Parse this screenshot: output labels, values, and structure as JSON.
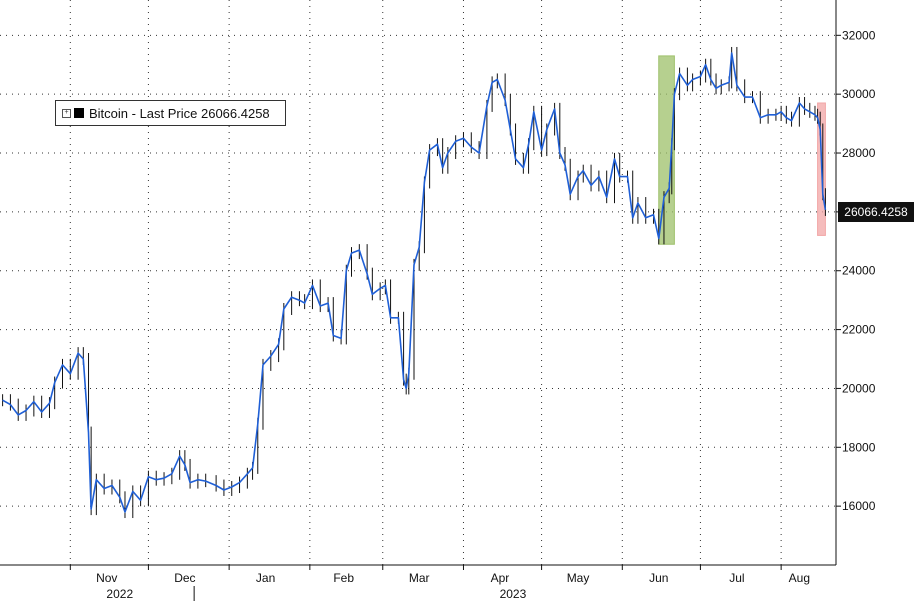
{
  "chart_data": {
    "type": "line",
    "series": [
      {
        "name": "Bitcoin - Last Price",
        "color": "#1f5fd6"
      }
    ],
    "legend": {
      "label": "Bitcoin - Last Price 26066.4258",
      "placement": "top-left"
    },
    "last_value_label": "26066.4258",
    "y_ticks": [
      "16000",
      "18000",
      "20000",
      "22000",
      "24000",
      "26000",
      "28000",
      "30000",
      "32000"
    ],
    "ylim": [
      14000,
      33200
    ],
    "x_month_labels": [
      "Nov",
      "Dec",
      "Jan",
      "Feb",
      "Mar",
      "Apr",
      "May",
      "Jun",
      "Jul",
      "Aug"
    ],
    "x_year_labels": [
      "2022",
      "2023"
    ],
    "grid": true,
    "highlights": [
      {
        "kind": "rally",
        "color": "#9ec06a",
        "from": "2023-06-15",
        "to": "2023-06-21",
        "y_range": [
          24900,
          31300
        ]
      },
      {
        "kind": "drop",
        "color": "#f2a6a6",
        "from": "2023-08-15",
        "to": "2023-08-18",
        "y_range": [
          25200,
          29700
        ]
      }
    ],
    "points": [
      [
        "2022-10-06",
        19600
      ],
      [
        "2022-10-09",
        19450
      ],
      [
        "2022-10-12",
        19100
      ],
      [
        "2022-10-15",
        19250
      ],
      [
        "2022-10-18",
        19550
      ],
      [
        "2022-10-21",
        19200
      ],
      [
        "2022-10-24",
        19500
      ],
      [
        "2022-10-26",
        20200
      ],
      [
        "2022-10-29",
        20800
      ],
      [
        "2022-11-01",
        20500
      ],
      [
        "2022-11-04",
        21200
      ],
      [
        "2022-11-06",
        21000
      ],
      [
        "2022-11-08",
        18500
      ],
      [
        "2022-11-09",
        15900
      ],
      [
        "2022-11-11",
        16900
      ],
      [
        "2022-11-14",
        16600
      ],
      [
        "2022-11-17",
        16700
      ],
      [
        "2022-11-20",
        16300
      ],
      [
        "2022-11-22",
        15800
      ],
      [
        "2022-11-25",
        16500
      ],
      [
        "2022-11-28",
        16200
      ],
      [
        "2022-12-01",
        17000
      ],
      [
        "2022-12-04",
        16900
      ],
      [
        "2022-12-07",
        16950
      ],
      [
        "2022-12-10",
        17100
      ],
      [
        "2022-12-13",
        17700
      ],
      [
        "2022-12-15",
        17400
      ],
      [
        "2022-12-17",
        16800
      ],
      [
        "2022-12-20",
        16900
      ],
      [
        "2022-12-23",
        16850
      ],
      [
        "2022-12-27",
        16700
      ],
      [
        "2022-12-30",
        16550
      ],
      [
        "2023-01-02",
        16650
      ],
      [
        "2023-01-05",
        16800
      ],
      [
        "2023-01-08",
        17100
      ],
      [
        "2023-01-10",
        17300
      ],
      [
        "2023-01-12",
        18800
      ],
      [
        "2023-01-14",
        20800
      ],
      [
        "2023-01-17",
        21100
      ],
      [
        "2023-01-20",
        21500
      ],
      [
        "2023-01-22",
        22700
      ],
      [
        "2023-01-25",
        23100
      ],
      [
        "2023-01-28",
        23000
      ],
      [
        "2023-01-30",
        22900
      ],
      [
        "2023-02-02",
        23500
      ],
      [
        "2023-02-05",
        22800
      ],
      [
        "2023-02-08",
        22900
      ],
      [
        "2023-02-10",
        21800
      ],
      [
        "2023-02-13",
        21700
      ],
      [
        "2023-02-15",
        24000
      ],
      [
        "2023-02-17",
        24600
      ],
      [
        "2023-02-20",
        24700
      ],
      [
        "2023-02-23",
        23900
      ],
      [
        "2023-02-25",
        23200
      ],
      [
        "2023-02-28",
        23400
      ],
      [
        "2023-03-02",
        23500
      ],
      [
        "2023-03-04",
        22400
      ],
      [
        "2023-03-07",
        22400
      ],
      [
        "2023-03-09",
        20300
      ],
      [
        "2023-03-10",
        20000
      ],
      [
        "2023-03-11",
        20500
      ],
      [
        "2023-03-13",
        24200
      ],
      [
        "2023-03-15",
        24800
      ],
      [
        "2023-03-17",
        27000
      ],
      [
        "2023-03-19",
        28100
      ],
      [
        "2023-03-22",
        28300
      ],
      [
        "2023-03-24",
        27500
      ],
      [
        "2023-03-26",
        28000
      ],
      [
        "2023-03-29",
        28400
      ],
      [
        "2023-04-01",
        28500
      ],
      [
        "2023-04-04",
        28200
      ],
      [
        "2023-04-07",
        28000
      ],
      [
        "2023-04-10",
        29600
      ],
      [
        "2023-04-12",
        30400
      ],
      [
        "2023-04-14",
        30500
      ],
      [
        "2023-04-17",
        29800
      ],
      [
        "2023-04-19",
        28800
      ],
      [
        "2023-04-21",
        27800
      ],
      [
        "2023-04-24",
        27500
      ],
      [
        "2023-04-26",
        28300
      ],
      [
        "2023-04-28",
        29400
      ],
      [
        "2023-05-01",
        28100
      ],
      [
        "2023-05-03",
        28800
      ],
      [
        "2023-05-06",
        29500
      ],
      [
        "2023-05-08",
        28000
      ],
      [
        "2023-05-10",
        27600
      ],
      [
        "2023-05-12",
        26600
      ],
      [
        "2023-05-15",
        27200
      ],
      [
        "2023-05-17",
        27400
      ],
      [
        "2023-05-20",
        26900
      ],
      [
        "2023-05-23",
        27200
      ],
      [
        "2023-05-26",
        26500
      ],
      [
        "2023-05-29",
        27800
      ],
      [
        "2023-05-31",
        27200
      ],
      [
        "2023-06-03",
        27200
      ],
      [
        "2023-06-05",
        25800
      ],
      [
        "2023-06-07",
        26300
      ],
      [
        "2023-06-10",
        25800
      ],
      [
        "2023-06-13",
        25900
      ],
      [
        "2023-06-15",
        25100
      ],
      [
        "2023-06-17",
        26500
      ],
      [
        "2023-06-19",
        26800
      ],
      [
        "2023-06-20",
        28300
      ],
      [
        "2023-06-21",
        30000
      ],
      [
        "2023-06-23",
        30700
      ],
      [
        "2023-06-26",
        30300
      ],
      [
        "2023-06-28",
        30500
      ],
      [
        "2023-07-01",
        30600
      ],
      [
        "2023-07-03",
        31000
      ],
      [
        "2023-07-05",
        30500
      ],
      [
        "2023-07-07",
        30200
      ],
      [
        "2023-07-09",
        30300
      ],
      [
        "2023-07-12",
        30400
      ],
      [
        "2023-07-13",
        31400
      ],
      [
        "2023-07-15",
        30300
      ],
      [
        "2023-07-18",
        29900
      ],
      [
        "2023-07-21",
        29900
      ],
      [
        "2023-07-24",
        29200
      ],
      [
        "2023-07-27",
        29300
      ],
      [
        "2023-07-30",
        29300
      ],
      [
        "2023-08-01",
        29400
      ],
      [
        "2023-08-03",
        29200
      ],
      [
        "2023-08-05",
        29100
      ],
      [
        "2023-08-08",
        29700
      ],
      [
        "2023-08-10",
        29500
      ],
      [
        "2023-08-12",
        29400
      ],
      [
        "2023-08-14",
        29300
      ],
      [
        "2023-08-15",
        29200
      ],
      [
        "2023-08-16",
        28800
      ],
      [
        "2023-08-17",
        26600
      ],
      [
        "2023-08-18",
        26066
      ]
    ]
  }
}
